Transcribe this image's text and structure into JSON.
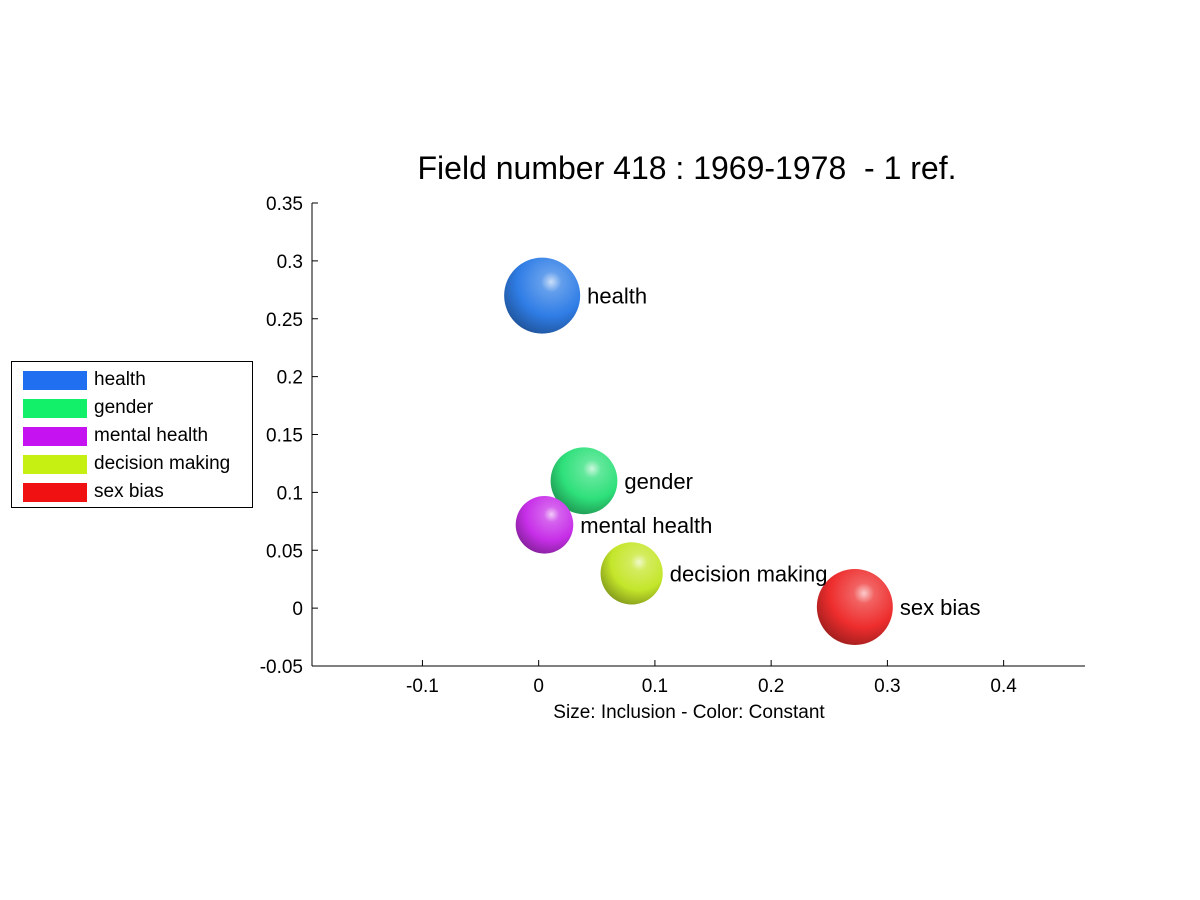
{
  "chart_data": {
    "type": "scatter",
    "title": "Field number 418 : 1969-1978  - 1 ref.",
    "xlabel": "Size: Inclusion - Color: Constant",
    "ylabel": "",
    "xlim": [
      -0.195,
      0.47
    ],
    "ylim": [
      -0.05,
      0.35
    ],
    "xticks": [
      -0.1,
      0,
      0.1,
      0.2,
      0.3,
      0.4
    ],
    "xtick_labels": [
      "-0.1",
      "0",
      "0.1",
      "0.2",
      "0.3",
      "0.4"
    ],
    "yticks": [
      -0.05,
      0,
      0.05,
      0.1,
      0.15,
      0.2,
      0.25,
      0.3,
      0.35
    ],
    "ytick_labels": [
      "-0.05",
      "0",
      "0.05",
      "0.1",
      "0.15",
      "0.2",
      "0.25",
      "0.3",
      "0.35"
    ],
    "grid": false,
    "legend_placement": "left",
    "points": [
      {
        "name": "health",
        "x": 0.003,
        "y": 0.27,
        "size": 0.66,
        "color": "#2f7de6"
      },
      {
        "name": "gender",
        "x": 0.039,
        "y": 0.11,
        "size": 0.58,
        "color": "#2ee07a"
      },
      {
        "name": "mental health",
        "x": 0.005,
        "y": 0.072,
        "size": 0.5,
        "color": "#c72fe8"
      },
      {
        "name": "decision making",
        "x": 0.08,
        "y": 0.03,
        "size": 0.54,
        "color": "#c4e62a"
      },
      {
        "name": "sex bias",
        "x": 0.272,
        "y": 0.001,
        "size": 0.66,
        "color": "#ee2d2d"
      }
    ]
  },
  "legend": {
    "items": [
      {
        "label": "health",
        "color": "#1f6ff0"
      },
      {
        "label": "gender",
        "color": "#12f06a"
      },
      {
        "label": "mental health",
        "color": "#c512f0"
      },
      {
        "label": "decision making",
        "color": "#c6f012"
      },
      {
        "label": "sex bias",
        "color": "#f01212"
      }
    ]
  }
}
